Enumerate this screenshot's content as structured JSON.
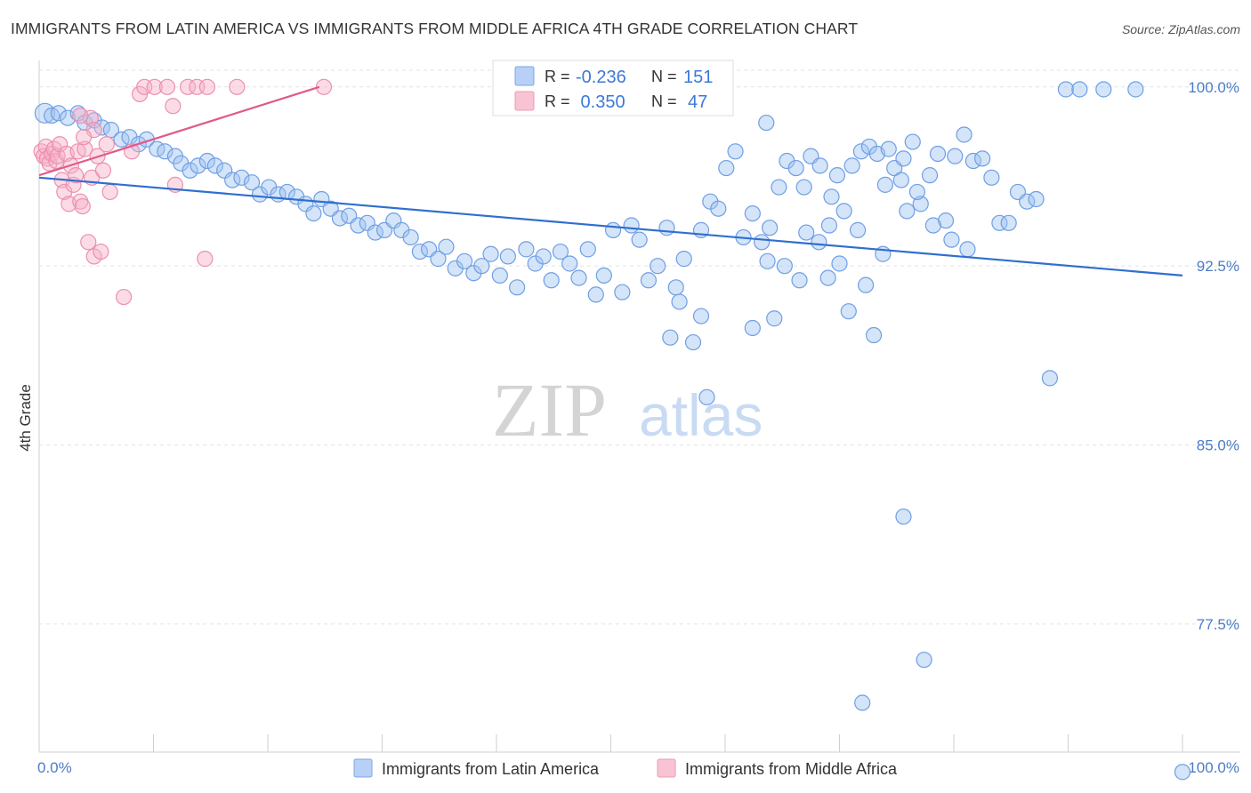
{
  "chart_data": {
    "type": "scatter",
    "title": "IMMIGRANTS FROM LATIN AMERICA VS IMMIGRANTS FROM MIDDLE AFRICA 4TH GRADE CORRELATION CHART",
    "source": "Source: ZipAtlas.com",
    "ylabel": "4th Grade",
    "xlim": [
      0,
      100
    ],
    "ylim": [
      71.5,
      100.7
    ],
    "y_ticks": [
      {
        "value": 100.0,
        "label": "100.0%"
      },
      {
        "value": 92.5,
        "label": "92.5%"
      },
      {
        "value": 85.0,
        "label": "85.0%"
      },
      {
        "value": 77.5,
        "label": "77.5%"
      }
    ],
    "x_ticks": [
      {
        "value": 0,
        "label": "0.0%"
      },
      {
        "value": 100,
        "label": "100.0%"
      }
    ],
    "watermark": {
      "part1": "ZIP",
      "part2": "atlas"
    },
    "stats_legend": [
      {
        "r_label": "R =",
        "r_value": "-0.236",
        "n_label": "N =",
        "n_value": "151"
      },
      {
        "r_label": "R =",
        "r_value": " 0.350",
        "n_label": "N =",
        "n_value": "47"
      }
    ],
    "series": [
      {
        "name": "Immigrants from Latin America",
        "color": "#8ab4f0",
        "line_color": "#2f6fcf",
        "trend": {
          "x0": 0,
          "y0": 96.2,
          "x1": 100,
          "y1": 92.1
        },
        "points": [
          [
            0.5,
            98.9
          ],
          [
            1.1,
            98.8
          ],
          [
            1.7,
            98.9
          ],
          [
            2.5,
            98.7
          ],
          [
            3.4,
            98.9
          ],
          [
            4.0,
            98.5
          ],
          [
            4.8,
            98.6
          ],
          [
            5.5,
            98.3
          ],
          [
            6.3,
            98.2
          ],
          [
            7.2,
            97.8
          ],
          [
            7.9,
            97.9
          ],
          [
            8.7,
            97.6
          ],
          [
            9.4,
            97.8
          ],
          [
            10.3,
            97.4
          ],
          [
            11.0,
            97.3
          ],
          [
            11.9,
            97.1
          ],
          [
            12.4,
            96.8
          ],
          [
            13.2,
            96.5
          ],
          [
            13.9,
            96.7
          ],
          [
            14.7,
            96.9
          ],
          [
            15.4,
            96.7
          ],
          [
            16.2,
            96.5
          ],
          [
            16.9,
            96.1
          ],
          [
            17.7,
            96.2
          ],
          [
            18.6,
            96.0
          ],
          [
            19.3,
            95.5
          ],
          [
            20.1,
            95.8
          ],
          [
            20.9,
            95.5
          ],
          [
            21.7,
            95.6
          ],
          [
            22.5,
            95.4
          ],
          [
            23.3,
            95.1
          ],
          [
            24.0,
            94.7
          ],
          [
            24.7,
            95.3
          ],
          [
            25.5,
            94.9
          ],
          [
            26.3,
            94.5
          ],
          [
            27.1,
            94.6
          ],
          [
            27.9,
            94.2
          ],
          [
            28.7,
            94.3
          ],
          [
            29.4,
            93.9
          ],
          [
            30.2,
            94.0
          ],
          [
            31.0,
            94.4
          ],
          [
            31.7,
            94.0
          ],
          [
            32.5,
            93.7
          ],
          [
            33.3,
            93.1
          ],
          [
            34.1,
            93.2
          ],
          [
            34.9,
            92.8
          ],
          [
            35.6,
            93.3
          ],
          [
            36.4,
            92.4
          ],
          [
            37.2,
            92.7
          ],
          [
            38.0,
            92.2
          ],
          [
            38.7,
            92.5
          ],
          [
            39.5,
            93.0
          ],
          [
            40.3,
            92.1
          ],
          [
            41.0,
            92.9
          ],
          [
            41.8,
            91.6
          ],
          [
            42.6,
            93.2
          ],
          [
            43.4,
            92.6
          ],
          [
            44.1,
            92.9
          ],
          [
            44.8,
            91.9
          ],
          [
            45.6,
            93.1
          ],
          [
            46.4,
            92.6
          ],
          [
            47.2,
            92.0
          ],
          [
            48.0,
            93.2
          ],
          [
            48.7,
            91.3
          ],
          [
            49.4,
            92.1
          ],
          [
            50.2,
            94.0
          ],
          [
            51.0,
            91.4
          ],
          [
            51.8,
            94.2
          ],
          [
            52.5,
            93.6
          ],
          [
            53.3,
            91.9
          ],
          [
            54.1,
            92.5
          ],
          [
            54.9,
            94.1
          ],
          [
            55.7,
            91.6
          ],
          [
            56.4,
            92.8
          ],
          [
            57.2,
            89.3
          ],
          [
            57.9,
            94.0
          ],
          [
            58.7,
            95.2
          ],
          [
            59.4,
            94.9
          ],
          [
            60.1,
            96.6
          ],
          [
            60.9,
            97.3
          ],
          [
            61.6,
            93.7
          ],
          [
            62.4,
            94.7
          ],
          [
            63.2,
            93.5
          ],
          [
            63.9,
            94.1
          ],
          [
            64.7,
            95.8
          ],
          [
            65.4,
            96.9
          ],
          [
            66.2,
            96.6
          ],
          [
            66.9,
            95.8
          ],
          [
            67.5,
            97.1
          ],
          [
            68.3,
            96.7
          ],
          [
            69.1,
            94.2
          ],
          [
            69.8,
            96.3
          ],
          [
            70.4,
            94.8
          ],
          [
            71.1,
            96.7
          ],
          [
            71.9,
            97.3
          ],
          [
            72.6,
            97.5
          ],
          [
            73.3,
            97.2
          ],
          [
            74.0,
            95.9
          ],
          [
            74.8,
            96.6
          ],
          [
            75.6,
            97.0
          ],
          [
            76.4,
            97.7
          ],
          [
            77.1,
            95.1
          ],
          [
            77.9,
            96.3
          ],
          [
            78.6,
            97.2
          ],
          [
            79.3,
            94.4
          ],
          [
            80.1,
            97.1
          ],
          [
            80.9,
            98.0
          ],
          [
            81.7,
            96.9
          ],
          [
            82.5,
            97.0
          ],
          [
            83.3,
            96.2
          ],
          [
            84.0,
            94.3
          ],
          [
            84.8,
            94.3
          ],
          [
            85.6,
            95.6
          ],
          [
            86.4,
            95.2
          ],
          [
            87.2,
            95.3
          ],
          [
            88.4,
            87.8
          ],
          [
            89.8,
            99.9
          ],
          [
            91.0,
            99.9
          ],
          [
            93.1,
            99.9
          ],
          [
            95.9,
            99.9
          ],
          [
            100.0,
            71.3
          ],
          [
            63.6,
            98.5
          ],
          [
            58.4,
            87.0
          ],
          [
            57.9,
            90.4
          ],
          [
            62.4,
            89.9
          ],
          [
            64.3,
            90.3
          ],
          [
            63.7,
            92.7
          ],
          [
            55.2,
            89.5
          ],
          [
            56.0,
            91.0
          ],
          [
            72.3,
            91.7
          ],
          [
            70.8,
            90.6
          ],
          [
            73.0,
            89.6
          ],
          [
            75.6,
            82.0
          ],
          [
            77.4,
            76.0
          ],
          [
            72.0,
            74.2
          ],
          [
            75.9,
            94.8
          ],
          [
            75.4,
            96.1
          ],
          [
            74.3,
            97.4
          ],
          [
            71.6,
            94.0
          ],
          [
            69.0,
            92.0
          ],
          [
            67.1,
            93.9
          ],
          [
            65.2,
            92.5
          ],
          [
            66.5,
            91.9
          ],
          [
            68.2,
            93.5
          ],
          [
            70.0,
            92.6
          ],
          [
            73.8,
            93.0
          ],
          [
            76.8,
            95.6
          ],
          [
            78.2,
            94.2
          ],
          [
            79.8,
            93.6
          ],
          [
            81.2,
            93.2
          ],
          [
            69.3,
            95.4
          ]
        ]
      },
      {
        "name": "Immigrants from Middle Africa",
        "color": "#f4a6bf",
        "line_color": "#e05a8a",
        "trend": {
          "x0": 0,
          "y0": 96.3,
          "x1": 24.5,
          "y1": 100.0
        },
        "points": [
          [
            0.2,
            97.3
          ],
          [
            0.4,
            97.1
          ],
          [
            0.6,
            97.5
          ],
          [
            0.7,
            97.0
          ],
          [
            0.9,
            96.8
          ],
          [
            1.1,
            97.2
          ],
          [
            1.3,
            97.4
          ],
          [
            1.5,
            96.9
          ],
          [
            1.6,
            97.1
          ],
          [
            1.8,
            97.6
          ],
          [
            2.0,
            96.1
          ],
          [
            2.2,
            95.6
          ],
          [
            2.4,
            97.2
          ],
          [
            2.6,
            95.1
          ],
          [
            2.8,
            96.7
          ],
          [
            3.0,
            95.9
          ],
          [
            3.2,
            96.3
          ],
          [
            3.4,
            97.3
          ],
          [
            3.6,
            95.2
          ],
          [
            3.8,
            95.0
          ],
          [
            4.0,
            97.4
          ],
          [
            4.3,
            93.5
          ],
          [
            4.6,
            96.2
          ],
          [
            4.8,
            92.9
          ],
          [
            5.1,
            97.1
          ],
          [
            5.4,
            93.1
          ],
          [
            5.6,
            96.5
          ],
          [
            5.9,
            97.6
          ],
          [
            6.2,
            95.6
          ],
          [
            7.4,
            91.2
          ],
          [
            4.5,
            98.7
          ],
          [
            3.6,
            98.8
          ],
          [
            4.8,
            98.2
          ],
          [
            3.9,
            97.9
          ],
          [
            8.1,
            97.3
          ],
          [
            8.8,
            99.7
          ],
          [
            9.2,
            100.0
          ],
          [
            10.1,
            100.0
          ],
          [
            11.7,
            99.2
          ],
          [
            11.9,
            95.9
          ],
          [
            13.0,
            100.0
          ],
          [
            13.8,
            100.0
          ],
          [
            14.5,
            92.8
          ],
          [
            11.2,
            100.0
          ],
          [
            14.7,
            100.0
          ],
          [
            17.3,
            100.0
          ],
          [
            24.9,
            100.0
          ]
        ]
      }
    ]
  },
  "bottom_legend": [
    "Immigrants from Latin America",
    "Immigrants from Middle Africa"
  ]
}
